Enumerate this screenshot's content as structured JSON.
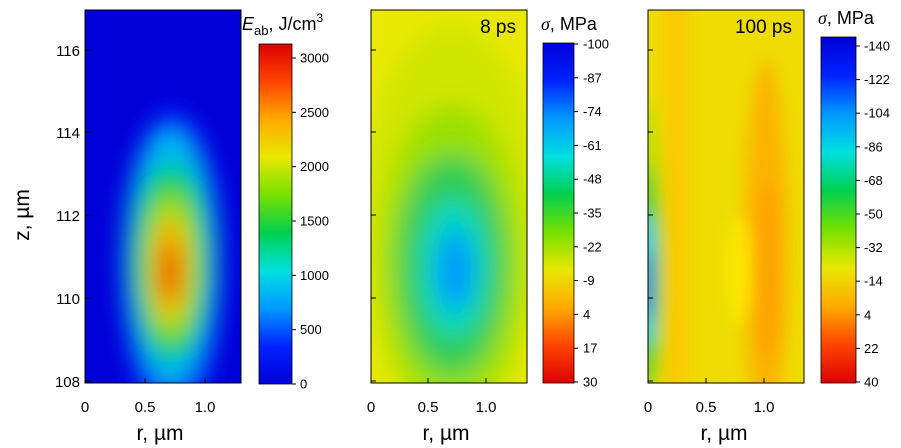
{
  "chart_data": [
    {
      "type": "heatmap",
      "panel": "a",
      "xlabel": "r, µm",
      "ylabel": "z, µm",
      "xlim": [
        0,
        1.3
      ],
      "ylim": [
        107.9,
        117.1
      ],
      "xticks": [
        "0",
        "0.5",
        "1.0"
      ],
      "yticks": [
        "108",
        "110",
        "112",
        "114",
        "116"
      ],
      "field": {
        "description": "single elongated hot spot",
        "peak_value": 3100,
        "peak_r": 0.73,
        "peak_z": 110.7,
        "background_value": 0
      },
      "colorbar": {
        "title": "E_ab, J/cm³",
        "title_symbol": "E",
        "title_subscript": "ab",
        "title_unit": ", J/cm",
        "title_unit_power": "3",
        "range": [
          0,
          3200
        ],
        "ticks": [
          "3000",
          "2500",
          "2000",
          "1500",
          "1000",
          "500",
          "0"
        ],
        "reversed": false
      }
    },
    {
      "type": "heatmap",
      "panel": "b",
      "annotation": "8 ps",
      "xlabel": "r, µm",
      "xlim": [
        0,
        1.3
      ],
      "ylim": [
        107.9,
        117.1
      ],
      "xticks": [
        "0",
        "0.5",
        "1.0"
      ],
      "field": {
        "description": "compressive (negative) stress spot",
        "peak_value": -85,
        "peak_r": 0.72,
        "peak_z": 110.8,
        "background_value": 4
      },
      "colorbar": {
        "title": "σ, MPa",
        "title_symbol": "σ",
        "title_unit": ", MPa",
        "range": [
          -100,
          30
        ],
        "ticks": [
          "-100",
          "-87",
          "-74",
          "-61",
          "-48",
          "-35",
          "-22",
          "-9",
          "4",
          "17",
          "30"
        ],
        "reversed": true
      }
    },
    {
      "type": "heatmap",
      "panel": "c",
      "annotation": "100 ps",
      "xlabel": "r, µm",
      "xlim": [
        0,
        1.3
      ],
      "ylim": [
        107.9,
        117.1
      ],
      "xticks": [
        "0",
        "0.5",
        "1.0"
      ],
      "field": {
        "description": "compressive strip at r=0, tensile bands at r≈0.35 and r≈1.1",
        "peak_value": -130,
        "peak_r": 0,
        "peak_z": 110.5,
        "background_value": 4
      },
      "colorbar": {
        "title": "σ, MPa",
        "title_symbol": "σ",
        "title_unit": ", MPa",
        "range": [
          -140,
          40
        ],
        "ticks": [
          "-140",
          "-122",
          "-104",
          "-86",
          "-68",
          "-50",
          "-32",
          "-14",
          "4",
          "22",
          "40"
        ],
        "reversed": true
      }
    }
  ],
  "palette": {
    "stops": [
      "#0000d8",
      "#0022ff",
      "#0099ff",
      "#00e0e0",
      "#00d050",
      "#77e000",
      "#e8e800",
      "#ffaa00",
      "#ff4400",
      "#dd0000"
    ]
  }
}
